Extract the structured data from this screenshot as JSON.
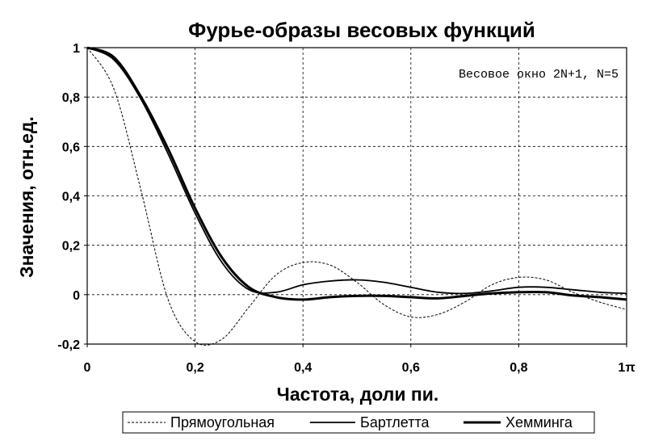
{
  "chart_data": {
    "type": "line",
    "title": "Фурье-образы весовых функций",
    "xlabel": "Частота, доли пи.",
    "ylabel": "Значения, отн.ед.",
    "annotation": "Весовое окно 2N+1, N=5",
    "xlim": [
      0,
      1
    ],
    "ylim": [
      -0.2,
      1
    ],
    "x_tick_labels": [
      "0",
      "0,2",
      "0,4",
      "0,6",
      "0,8",
      "1π"
    ],
    "y_tick_labels": [
      "-0,2",
      "0",
      "0,2",
      "0,4",
      "0,6",
      "0,8",
      "1"
    ],
    "grid": true,
    "legend_position": "bottom",
    "x": [
      0,
      0.05,
      0.1,
      0.15,
      0.2,
      0.25,
      0.3,
      0.35,
      0.4,
      0.45,
      0.5,
      0.55,
      0.6,
      0.65,
      0.7,
      0.75,
      0.8,
      0.85,
      0.9,
      0.95,
      1.0
    ],
    "series": [
      {
        "name": "Прямоугольная",
        "style": "dashed-thin",
        "color": "#000000",
        "values": [
          1.0,
          0.83,
          0.42,
          -0.02,
          -0.19,
          -0.18,
          -0.05,
          0.08,
          0.13,
          0.12,
          0.05,
          -0.04,
          -0.09,
          -0.08,
          -0.03,
          0.04,
          0.07,
          0.06,
          0.01,
          -0.03,
          -0.06
        ]
      },
      {
        "name": "Бартлетта",
        "style": "solid",
        "color": "#000000",
        "values": [
          1.0,
          0.95,
          0.79,
          0.57,
          0.33,
          0.13,
          0.02,
          0.01,
          0.04,
          0.055,
          0.06,
          0.05,
          0.03,
          0.01,
          0.005,
          0.015,
          0.03,
          0.03,
          0.02,
          0.01,
          0.005
        ]
      },
      {
        "name": "Хемминга",
        "style": "solid-bold",
        "color": "#000000",
        "values": [
          1.0,
          0.96,
          0.8,
          0.59,
          0.35,
          0.15,
          0.03,
          -0.01,
          -0.02,
          -0.01,
          -0.005,
          -0.005,
          -0.01,
          -0.015,
          -0.005,
          0.005,
          0.01,
          0.01,
          -0.003,
          -0.01,
          -0.02
        ]
      }
    ]
  }
}
